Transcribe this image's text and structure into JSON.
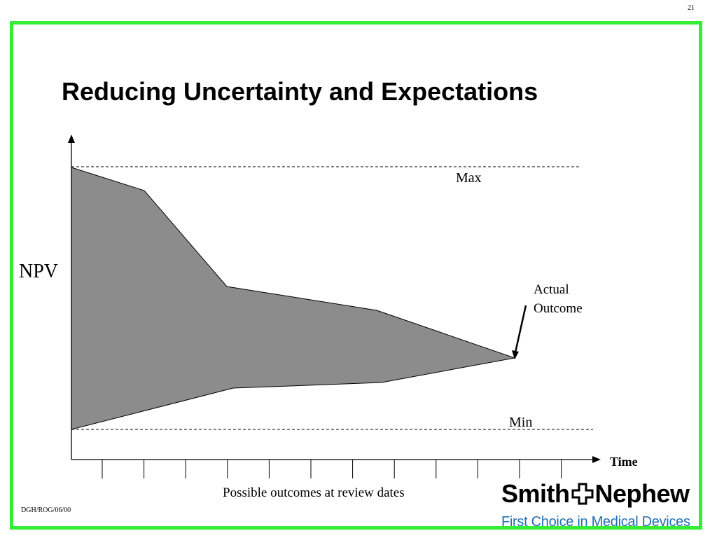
{
  "slide": {
    "page_number": "21",
    "title": "Reducing Uncertainty and Expectations",
    "footer_code": "DGH/ROG/06/00",
    "frame_color": "#33ee33"
  },
  "diagram": {
    "y_axis_label": "NPV",
    "x_axis_label": "Time",
    "max_label": "Max",
    "min_label": "Min",
    "actual_outcome_label_line1": "Actual",
    "actual_outcome_label_line2": "Outcome",
    "review_dates_caption": "Possible outcomes at review dates",
    "review_date_tick_count": 12,
    "fill_color": "#8c8c8c"
  },
  "logo": {
    "name_part1": "Smith",
    "name_part2": "Nephew",
    "tagline": "First Choice in Medical Devices",
    "tagline_color": "#1e6fb5"
  }
}
